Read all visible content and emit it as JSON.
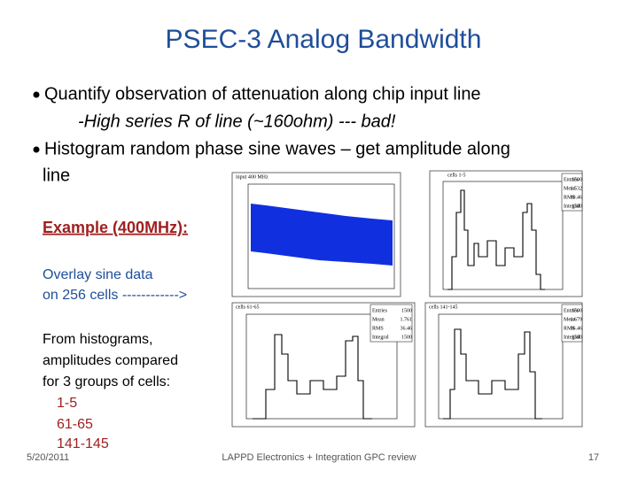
{
  "header": {
    "title": "PSEC-3 Analog Bandwidth"
  },
  "bullets": [
    "Quantify observation of attenuation along chip input line",
    "-High series R of line (~160ohm) --- bad!",
    "Histogram random phase sine waves – get amplitude along",
    "line"
  ],
  "example": "Example (400MHz):",
  "overlay": [
    "Overlay sine data",
    "on 256 cells ------------>"
  ],
  "compare": [
    "From histograms,",
    "amplitudes compared",
    "for 3 groups of cells:"
  ],
  "groups": [
    "1-5",
    "61-65",
    "141-145"
  ],
  "plots": [
    {
      "title": "input 400 MHz"
    },
    {
      "title": "cells 1-5",
      "stats": [
        [
          "Entries",
          "1500"
        ],
        [
          "Mean",
          "1.532"
        ],
        [
          "RMS",
          "30.46"
        ],
        [
          "Integral",
          "1500"
        ]
      ]
    },
    {
      "title": "cells 61-65",
      "stats": [
        [
          "Entries",
          "1500"
        ],
        [
          "Mean",
          "1.761"
        ],
        [
          "RMS",
          "36.46"
        ],
        [
          "Integral",
          "1500"
        ]
      ]
    },
    {
      "title": "cells 141-145",
      "stats": [
        [
          "Entries",
          "1500"
        ],
        [
          "Mean",
          "-1.679"
        ],
        [
          "RMS",
          "36.46"
        ],
        [
          "Integral",
          "1500"
        ]
      ]
    }
  ],
  "footer": {
    "date": "5/20/2011",
    "center": "LAPPD Electronics + Integration GPC review",
    "page": "17"
  }
}
